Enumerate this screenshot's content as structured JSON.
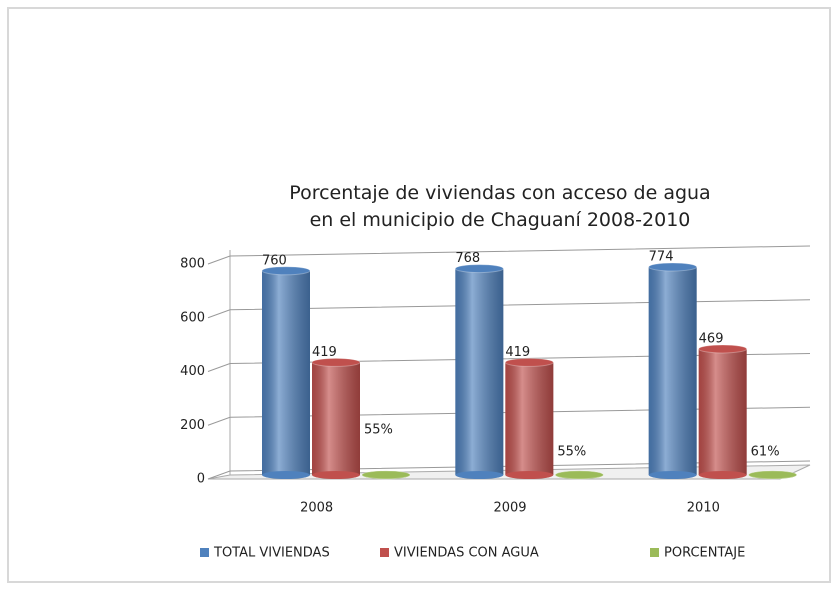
{
  "chart_data": {
    "type": "bar",
    "title": "Porcentaje de viviendas con acceso de agua en el municipio de Chaguaní 2008-2010",
    "categories": [
      "2008",
      "2009",
      "2010"
    ],
    "series": [
      {
        "name": "TOTAL VIVIENDAS",
        "color": "#4f81bd",
        "values": [
          760,
          768,
          774
        ]
      },
      {
        "name": "VIVIENDAS CON AGUA",
        "color": "#c0504d",
        "values": [
          419,
          419,
          469
        ]
      },
      {
        "name": "PORCENTAJE",
        "color": "#9bbb59",
        "values": [
          0.55,
          0.55,
          0.61
        ],
        "value_labels": [
          "55%",
          "55%",
          "61%"
        ]
      }
    ],
    "ylim": [
      0,
      800
    ],
    "yticks": [
      0,
      200,
      400,
      600,
      800
    ],
    "grid": true,
    "legend": "bottom"
  }
}
